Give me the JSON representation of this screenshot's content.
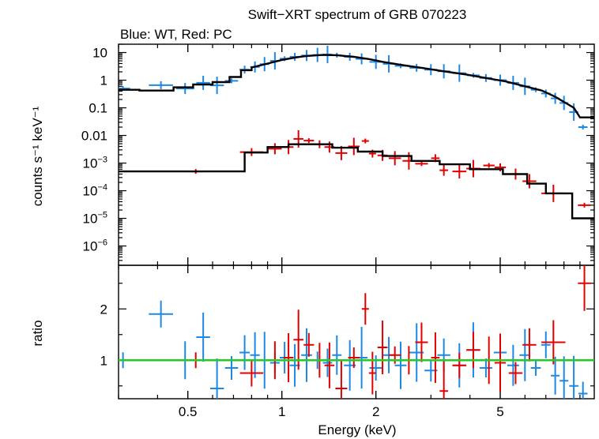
{
  "chart_data": [
    {
      "type": "scatter",
      "panel": "spectrum",
      "title": "Swift−XRT spectrum of GRB 070223",
      "subtitle": "Blue: WT, Red: PC",
      "ylabel": "counts s⁻¹ keV⁻¹",
      "y_scale": "log",
      "xlim": [
        0.3,
        10
      ],
      "ylim": [
        2e-07,
        20
      ],
      "y_ticks": [
        {
          "value": 10,
          "label": "10",
          "exp": ""
        },
        {
          "value": 1,
          "label": "1",
          "exp": ""
        },
        {
          "value": 0.1,
          "label": "0.1",
          "exp": ""
        },
        {
          "value": 0.01,
          "label": "0.01",
          "exp": ""
        },
        {
          "value": 0.001,
          "label": "10",
          "exp": "−3"
        },
        {
          "value": 0.0001,
          "label": "10",
          "exp": "−4"
        },
        {
          "value": 1e-05,
          "label": "10",
          "exp": "−5"
        },
        {
          "value": 1e-06,
          "label": "10",
          "exp": "−6"
        }
      ],
      "series": [
        {
          "name": "WT",
          "color": "#1e88e5",
          "points": [
            [
              0.31,
              0.5
            ],
            [
              0.41,
              0.66
            ],
            [
              0.49,
              0.5
            ],
            [
              0.56,
              0.8
            ],
            [
              0.62,
              0.65
            ],
            [
              0.69,
              0.95
            ],
            [
              0.76,
              2.4
            ],
            [
              0.82,
              3.0
            ],
            [
              0.88,
              3.8
            ],
            [
              0.95,
              5.0
            ],
            [
              1.02,
              6.0
            ],
            [
              1.1,
              7.0
            ],
            [
              1.2,
              7.8
            ],
            [
              1.3,
              8.2
            ],
            [
              1.4,
              8.5
            ],
            [
              1.5,
              8.0
            ],
            [
              1.65,
              7.0
            ],
            [
              1.8,
              5.9
            ],
            [
              2.0,
              4.6
            ],
            [
              2.2,
              3.9
            ],
            [
              2.4,
              3.3
            ],
            [
              2.7,
              2.8
            ],
            [
              3.0,
              2.4
            ],
            [
              3.3,
              2.1
            ],
            [
              3.7,
              1.8
            ],
            [
              4.1,
              1.5
            ],
            [
              4.5,
              1.2
            ],
            [
              5.0,
              1.0
            ],
            [
              5.5,
              0.8
            ],
            [
              6.0,
              0.6
            ],
            [
              6.5,
              0.45
            ],
            [
              7.0,
              0.33
            ],
            [
              7.5,
              0.22
            ],
            [
              8.0,
              0.15
            ],
            [
              8.6,
              0.07
            ],
            [
              9.2,
              0.02
            ]
          ]
        },
        {
          "name": "PC",
          "color": "#e50000",
          "points": [
            [
              0.53,
              0.0005
            ],
            [
              0.8,
              0.0025
            ],
            [
              0.95,
              0.0033
            ],
            [
              1.05,
              0.0038
            ],
            [
              1.13,
              0.0075
            ],
            [
              1.22,
              0.0065
            ],
            [
              1.32,
              0.0048
            ],
            [
              1.42,
              0.0038
            ],
            [
              1.55,
              0.0023
            ],
            [
              1.7,
              0.004
            ],
            [
              1.85,
              0.0063
            ],
            [
              1.95,
              0.0022
            ],
            [
              2.1,
              0.0019
            ],
            [
              2.3,
              0.0015
            ],
            [
              2.55,
              0.0012
            ],
            [
              2.8,
              0.00095
            ],
            [
              3.1,
              0.0015
            ],
            [
              3.3,
              0.00055
            ],
            [
              3.7,
              0.0005
            ],
            [
              4.1,
              0.00063
            ],
            [
              4.6,
              0.00082
            ],
            [
              5.0,
              0.0007
            ],
            [
              5.6,
              0.0004
            ],
            [
              6.2,
              0.00022
            ],
            [
              7.4,
              8e-05
            ],
            [
              9.3,
              3e-05
            ]
          ]
        },
        {
          "name": "model",
          "color": "#000000",
          "steps": [
            [
              [
                0.3,
                0.45
              ],
              [
                0.35,
                0.45
              ],
              [
                0.35,
                0.42
              ],
              [
                0.45,
                0.42
              ],
              [
                0.45,
                0.55
              ],
              [
                0.52,
                0.55
              ],
              [
                0.52,
                0.7
              ],
              [
                0.6,
                0.7
              ],
              [
                0.6,
                0.85
              ],
              [
                0.68,
                0.85
              ],
              [
                0.68,
                1.3
              ],
              [
                0.74,
                1.3
              ],
              [
                0.74,
                2.3
              ],
              [
                0.8,
                2.3
              ],
              [
                0.8,
                2.9
              ],
              [
                0.9,
                4.0
              ],
              [
                1.0,
                5.4
              ],
              [
                1.1,
                6.6
              ],
              [
                1.2,
                7.5
              ],
              [
                1.35,
                8.2
              ],
              [
                1.5,
                8.0
              ],
              [
                1.7,
                7.0
              ],
              [
                1.9,
                5.8
              ],
              [
                2.1,
                4.6
              ],
              [
                2.4,
                3.6
              ],
              [
                2.8,
                2.8
              ],
              [
                3.3,
                2.1
              ],
              [
                3.9,
                1.6
              ],
              [
                4.5,
                1.2
              ],
              [
                5.2,
                0.9
              ],
              [
                6.0,
                0.6
              ],
              [
                6.8,
                0.42
              ],
              [
                7.5,
                0.25
              ],
              [
                8.1,
                0.15
              ],
              [
                8.6,
                0.1
              ],
              [
                9.0,
                0.045
              ],
              [
                10.0,
                0.045
              ]
            ],
            [
              [
                0.3,
                0.0005
              ],
              [
                0.76,
                0.0005
              ],
              [
                0.76,
                0.0024
              ],
              [
                0.9,
                0.0024
              ],
              [
                0.9,
                0.0038
              ],
              [
                1.05,
                0.0038
              ],
              [
                1.05,
                0.0048
              ],
              [
                1.45,
                0.0048
              ],
              [
                1.45,
                0.0036
              ],
              [
                1.75,
                0.0036
              ],
              [
                1.75,
                0.0026
              ],
              [
                2.1,
                0.0026
              ],
              [
                2.1,
                0.0018
              ],
              [
                2.6,
                0.0018
              ],
              [
                2.6,
                0.0012
              ],
              [
                3.2,
                0.0012
              ],
              [
                3.2,
                0.0009
              ],
              [
                4.0,
                0.0009
              ],
              [
                4.0,
                0.0006
              ],
              [
                5.1,
                0.0006
              ],
              [
                5.1,
                0.0004
              ],
              [
                6.1,
                0.0004
              ],
              [
                6.1,
                0.00018
              ],
              [
                7.0,
                0.00018
              ],
              [
                7.0,
                8e-05
              ],
              [
                8.5,
                8e-05
              ],
              [
                8.5,
                1e-05
              ],
              [
                10.0,
                1e-05
              ]
            ]
          ]
        }
      ]
    },
    {
      "type": "scatter",
      "panel": "ratio",
      "xlabel": "Energy (keV)",
      "ylabel": "ratio",
      "xlim": [
        0.3,
        10
      ],
      "ylim": [
        0.25,
        2.85
      ],
      "x_scale": "log",
      "x_ticks": [
        {
          "value": 0.5,
          "label": "0.5"
        },
        {
          "value": 1,
          "label": "1"
        },
        {
          "value": 2,
          "label": "2"
        },
        {
          "value": 5,
          "label": "5"
        }
      ],
      "y_ticks": [
        {
          "value": 1,
          "label": "1"
        },
        {
          "value": 2,
          "label": "2"
        }
      ],
      "reference_line": {
        "value": 1,
        "color": "#22cc22"
      },
      "series": [
        {
          "name": "WT",
          "color": "#1e88e5",
          "points": [
            [
              0.31,
              1.0
            ],
            [
              0.41,
              1.9
            ],
            [
              0.49,
              1.0
            ],
            [
              0.56,
              1.45
            ],
            [
              0.62,
              0.45
            ],
            [
              0.69,
              0.85
            ],
            [
              0.76,
              1.15
            ],
            [
              0.82,
              1.1
            ],
            [
              0.88,
              1.0
            ],
            [
              0.95,
              0.95
            ],
            [
              1.02,
              1.05
            ],
            [
              1.1,
              0.9
            ],
            [
              1.2,
              1.1
            ],
            [
              1.3,
              1.0
            ],
            [
              1.4,
              0.95
            ],
            [
              1.5,
              1.1
            ],
            [
              1.65,
              0.9
            ],
            [
              1.8,
              1.05
            ],
            [
              2.0,
              0.85
            ],
            [
              2.2,
              1.1
            ],
            [
              2.4,
              0.9
            ],
            [
              2.7,
              1.15
            ],
            [
              3.0,
              0.8
            ],
            [
              3.3,
              1.1
            ],
            [
              3.7,
              0.9
            ],
            [
              4.1,
              1.2
            ],
            [
              4.5,
              0.85
            ],
            [
              5.0,
              1.15
            ],
            [
              5.5,
              0.9
            ],
            [
              6.0,
              1.1
            ],
            [
              6.5,
              0.85
            ],
            [
              7.0,
              1.3
            ],
            [
              7.5,
              0.7
            ],
            [
              8.0,
              0.6
            ],
            [
              8.6,
              0.5
            ],
            [
              9.2,
              0.35
            ]
          ]
        },
        {
          "name": "PC",
          "color": "#e50000",
          "points": [
            [
              0.53,
              1.0
            ],
            [
              0.8,
              0.75
            ],
            [
              0.95,
              1.0
            ],
            [
              1.05,
              1.05
            ],
            [
              1.13,
              1.4
            ],
            [
              1.22,
              1.3
            ],
            [
              1.32,
              1.0
            ],
            [
              1.42,
              0.9
            ],
            [
              1.55,
              0.45
            ],
            [
              1.7,
              1.05
            ],
            [
              1.85,
              2.0
            ],
            [
              1.95,
              0.75
            ],
            [
              2.1,
              1.25
            ],
            [
              2.3,
              1.1
            ],
            [
              2.55,
              1.0
            ],
            [
              2.8,
              1.35
            ],
            [
              3.1,
              1.05
            ],
            [
              3.3,
              0.4
            ],
            [
              3.7,
              0.9
            ],
            [
              4.1,
              1.2
            ],
            [
              4.6,
              1.0
            ],
            [
              5.0,
              0.95
            ],
            [
              5.6,
              0.75
            ],
            [
              6.2,
              1.3
            ],
            [
              7.4,
              1.35
            ],
            [
              9.3,
              2.5
            ]
          ]
        }
      ]
    }
  ]
}
